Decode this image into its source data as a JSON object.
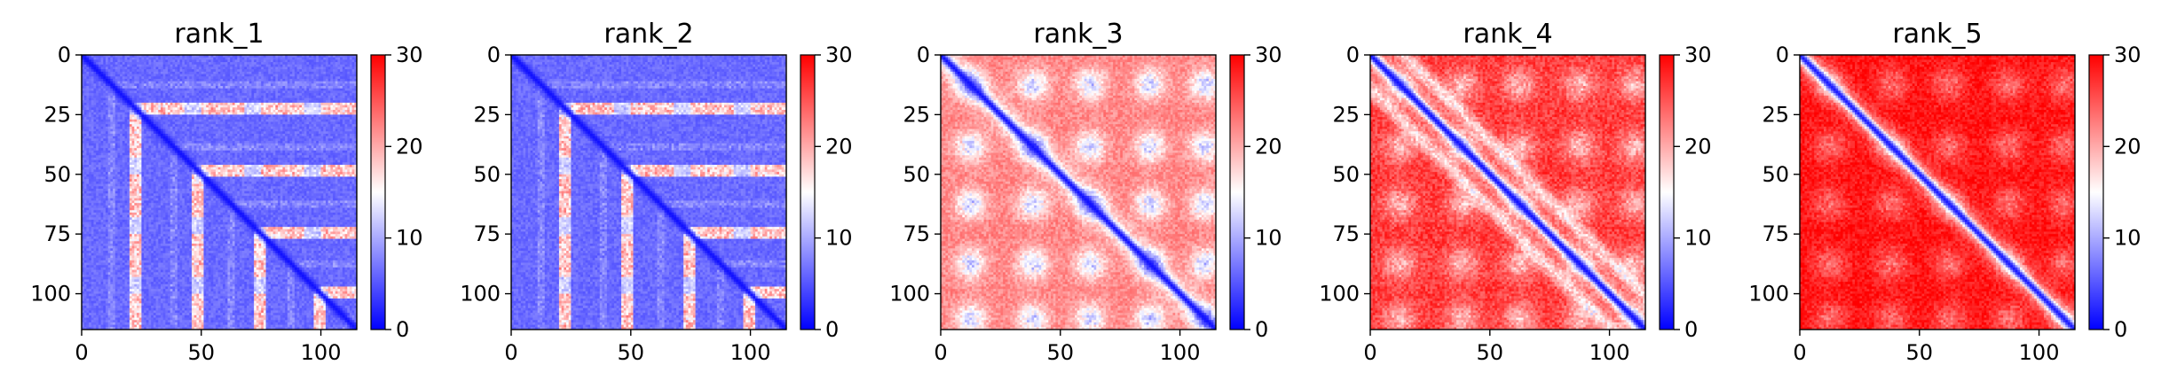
{
  "chart_data": [
    {
      "type": "heatmap",
      "title": "rank_1",
      "pattern": "low",
      "xlim": [
        0,
        115
      ],
      "ylim": [
        115,
        0
      ],
      "xticks": [
        0,
        50,
        100
      ],
      "yticks": [
        0,
        25,
        50,
        75,
        100
      ],
      "color_range": [
        0,
        30
      ],
      "colorbar_ticks": [
        0,
        10,
        20,
        30
      ],
      "colormap": [
        "#0000ff",
        "#ffffff",
        "#ff0000"
      ]
    },
    {
      "type": "heatmap",
      "title": "rank_2",
      "pattern": "low",
      "xlim": [
        0,
        115
      ],
      "ylim": [
        115,
        0
      ],
      "xticks": [
        0,
        50,
        100
      ],
      "yticks": [
        0,
        25,
        50,
        75,
        100
      ],
      "color_range": [
        0,
        30
      ],
      "colorbar_ticks": [
        0,
        10,
        20,
        30
      ],
      "colormap": [
        "#0000ff",
        "#ffffff",
        "#ff0000"
      ]
    },
    {
      "type": "heatmap",
      "title": "rank_3",
      "pattern": "mixed",
      "xlim": [
        0,
        115
      ],
      "ylim": [
        115,
        0
      ],
      "xticks": [
        0,
        50,
        100
      ],
      "yticks": [
        0,
        25,
        50,
        75,
        100
      ],
      "color_range": [
        0,
        30
      ],
      "colorbar_ticks": [
        0,
        10,
        20,
        30
      ],
      "colormap": [
        "#0000ff",
        "#ffffff",
        "#ff0000"
      ]
    },
    {
      "type": "heatmap",
      "title": "rank_4",
      "pattern": "high",
      "xlim": [
        0,
        115
      ],
      "ylim": [
        115,
        0
      ],
      "xticks": [
        0,
        50,
        100
      ],
      "yticks": [
        0,
        25,
        50,
        75,
        100
      ],
      "color_range": [
        0,
        30
      ],
      "colorbar_ticks": [
        0,
        10,
        20,
        30
      ],
      "colormap": [
        "#0000ff",
        "#ffffff",
        "#ff0000"
      ]
    },
    {
      "type": "heatmap",
      "title": "rank_5",
      "pattern": "highest",
      "xlim": [
        0,
        115
      ],
      "ylim": [
        115,
        0
      ],
      "xticks": [
        0,
        50,
        100
      ],
      "yticks": [
        0,
        25,
        50,
        75,
        100
      ],
      "color_range": [
        0,
        30
      ],
      "colorbar_ticks": [
        0,
        10,
        20,
        30
      ],
      "colormap": [
        "#0000ff",
        "#ffffff",
        "#ff0000"
      ]
    }
  ]
}
